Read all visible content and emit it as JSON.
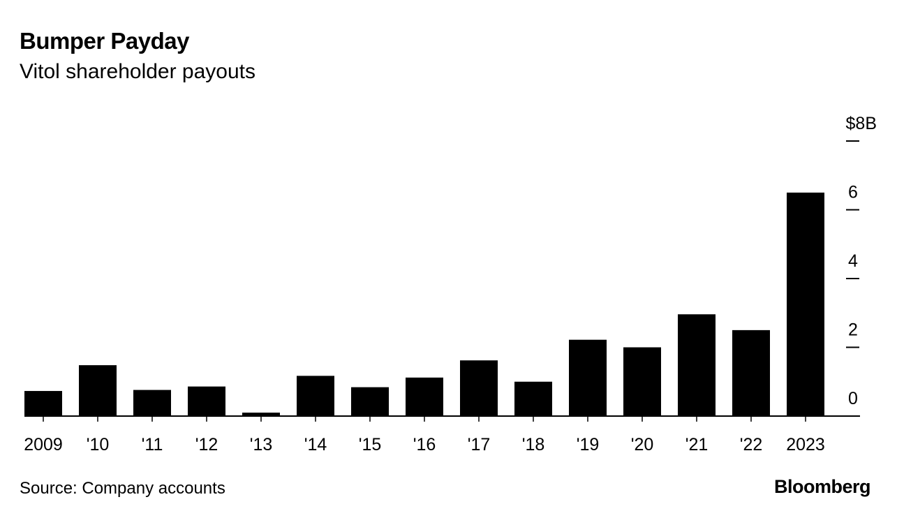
{
  "header": {
    "title": "Bumper Payday",
    "subtitle": "Vitol shareholder payouts"
  },
  "footer": {
    "source": "Source: Company accounts",
    "brand": "Bloomberg"
  },
  "colors": {
    "bar": "#000000",
    "axis": "#000000",
    "background": "#ffffff"
  },
  "chart_data": {
    "type": "bar",
    "title": "Bumper Payday",
    "subtitle": "Vitol shareholder payouts",
    "categories": [
      "2009",
      "'10",
      "'11",
      "'12",
      "'13",
      "'14",
      "'15",
      "'16",
      "'17",
      "'18",
      "'19",
      "'20",
      "'21",
      "'22",
      "2023"
    ],
    "values": [
      0.73,
      1.48,
      0.76,
      0.86,
      0.1,
      1.17,
      0.84,
      1.12,
      1.62,
      1.0,
      2.22,
      2.0,
      2.96,
      2.5,
      6.5
    ],
    "ylim": [
      0,
      8
    ],
    "yticks": [
      0,
      2,
      4,
      6,
      8
    ],
    "ytick_labels": [
      "0",
      "2",
      "4",
      "6",
      "$8B"
    ],
    "y_axis_position": "right",
    "grid": false,
    "legend": "none"
  }
}
